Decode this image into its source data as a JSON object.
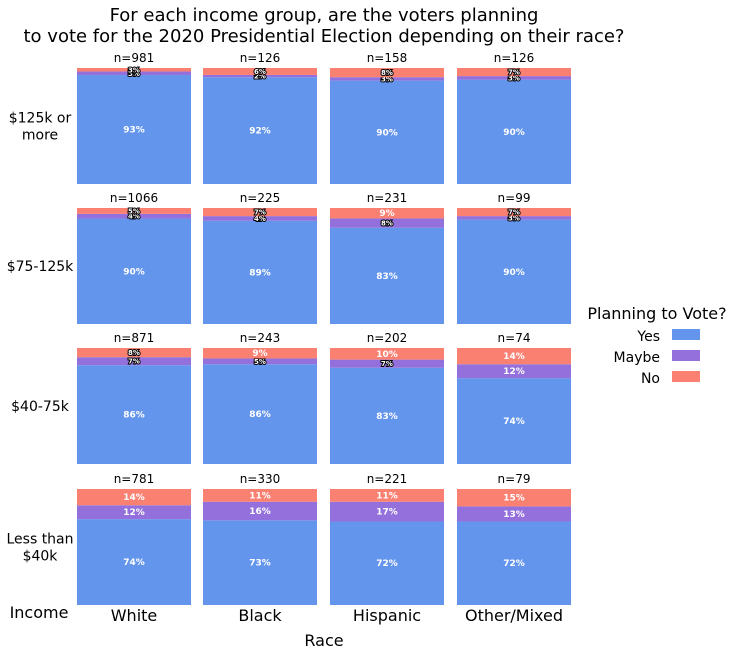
{
  "colors": {
    "yes": "#6495ed",
    "maybe": "#9370db",
    "no": "#fa8072"
  },
  "chart_data": {
    "type": "bar",
    "subtype": "stacked-100-percent-facet-grid",
    "title_lines": [
      "For each income group, are the voters planning",
      "to vote for the 2020 Presidential Election depending on their race?"
    ],
    "xlabel": "Race",
    "row_axis_label": "Income",
    "races": [
      "White",
      "Black",
      "Hispanic",
      "Other/Mixed"
    ],
    "incomes": [
      {
        "label_lines": [
          "$125k or",
          "more"
        ]
      },
      {
        "label_lines": [
          "$75-125k"
        ]
      },
      {
        "label_lines": [
          "$40-75k"
        ]
      },
      {
        "label_lines": [
          "Less than",
          "$40k"
        ]
      }
    ],
    "series_order": [
      "Yes",
      "Maybe",
      "No"
    ],
    "legend": {
      "title": "Planning to Vote?",
      "placement": "right",
      "entries": [
        {
          "name": "Yes",
          "color": "#6495ed"
        },
        {
          "name": "Maybe",
          "color": "#9370db"
        },
        {
          "name": "No",
          "color": "#fa8072"
        }
      ]
    },
    "cells": [
      [
        {
          "n": "n=981",
          "yes": 93,
          "maybe": 3,
          "no": 3
        },
        {
          "n": "n=126",
          "yes": 92,
          "maybe": 2,
          "no": 6
        },
        {
          "n": "n=158",
          "yes": 90,
          "maybe": 3,
          "no": 8
        },
        {
          "n": "n=126",
          "yes": 90,
          "maybe": 3,
          "no": 7
        }
      ],
      [
        {
          "n": "n=1066",
          "yes": 90,
          "maybe": 4,
          "no": 5
        },
        {
          "n": "n=225",
          "yes": 89,
          "maybe": 4,
          "no": 7
        },
        {
          "n": "n=231",
          "yes": 83,
          "maybe": 8,
          "no": 9
        },
        {
          "n": "n=99",
          "yes": 90,
          "maybe": 3,
          "no": 7
        }
      ],
      [
        {
          "n": "n=871",
          "yes": 86,
          "maybe": 7,
          "no": 8
        },
        {
          "n": "n=243",
          "yes": 86,
          "maybe": 5,
          "no": 9
        },
        {
          "n": "n=202",
          "yes": 83,
          "maybe": 7,
          "no": 10
        },
        {
          "n": "n=74",
          "yes": 74,
          "maybe": 12,
          "no": 14
        }
      ],
      [
        {
          "n": "n=781",
          "yes": 74,
          "maybe": 12,
          "no": 14
        },
        {
          "n": "n=330",
          "yes": 73,
          "maybe": 16,
          "no": 11
        },
        {
          "n": "n=221",
          "yes": 72,
          "maybe": 17,
          "no": 11
        },
        {
          "n": "n=79",
          "yes": 72,
          "maybe": 13,
          "no": 15
        }
      ]
    ]
  }
}
